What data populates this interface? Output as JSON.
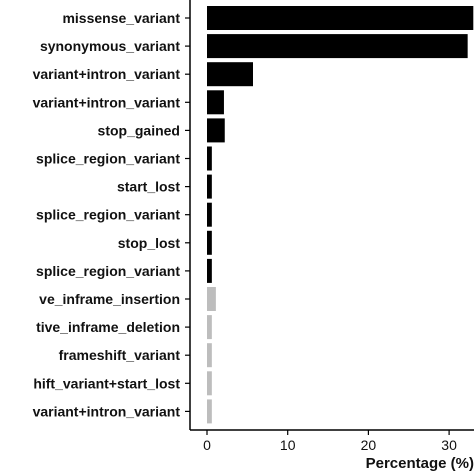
{
  "chart_data": {
    "type": "bar",
    "orientation": "horizontal",
    "title": "",
    "xlabel": "Percentage (%)",
    "ylabel": "",
    "xlim": [
      0,
      33
    ],
    "xticks": [
      0,
      10,
      20,
      30
    ],
    "grid": false,
    "legend": "none",
    "categories": [
      "missense_variant",
      "synonymous_variant",
      "variant+intron_variant",
      "variant+intron_variant",
      "stop_gained",
      "splice_region_variant",
      "start_lost",
      "splice_region_variant",
      "stop_lost",
      "splice_region_variant",
      "ve_inframe_insertion",
      "tive_inframe_deletion",
      "frameshift_variant",
      "hift_variant+start_lost",
      "variant+intron_variant"
    ],
    "values": [
      33,
      32.3,
      5.7,
      2.1,
      2.2,
      0.6,
      0.6,
      0.6,
      0.6,
      0.6,
      1.1,
      0.6,
      0.6,
      0.6,
      0.6
    ],
    "bar_colors": [
      "#000000",
      "#000000",
      "#000000",
      "#000000",
      "#000000",
      "#000000",
      "#000000",
      "#000000",
      "#000000",
      "#000000",
      "#bdbdbd",
      "#bdbdbd",
      "#bdbdbd",
      "#bdbdbd",
      "#bdbdbd"
    ]
  }
}
